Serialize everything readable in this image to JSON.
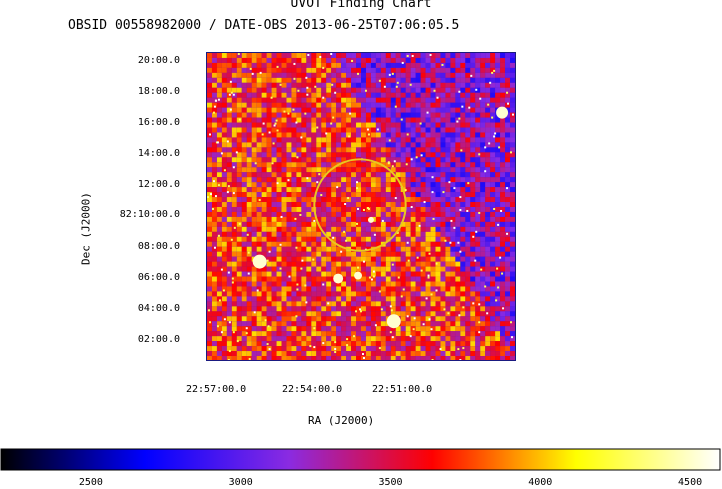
{
  "chart_data": {
    "type": "heatmap",
    "title": "UVOT Finding Chart",
    "subtitle": "OBSID 00558982000 / DATE-OBS 2013-06-25T07:06:05.5",
    "xlabel": "RA (J2000)",
    "ylabel": "Dec (J2000)",
    "x_ticks": [
      "22:57:00.0",
      "22:54:00.0",
      "22:51:00.0"
    ],
    "y_ticks": [
      "20:00.0",
      "18:00.0",
      "16:00.0",
      "14:00.0",
      "12:00.0",
      "82:10:00.0",
      "08:00.0",
      "06:00.0",
      "04:00.0",
      "02:00.0"
    ],
    "colorbar": {
      "range": [
        2200,
        4600
      ],
      "ticks": [
        2500,
        3000,
        3500,
        4000,
        4500
      ],
      "colors": [
        "#000000",
        "#0000ff",
        "#8a2be2",
        "#ff0000",
        "#ffff00",
        "#ffffff"
      ]
    },
    "circle_color": "#e8c820"
  }
}
